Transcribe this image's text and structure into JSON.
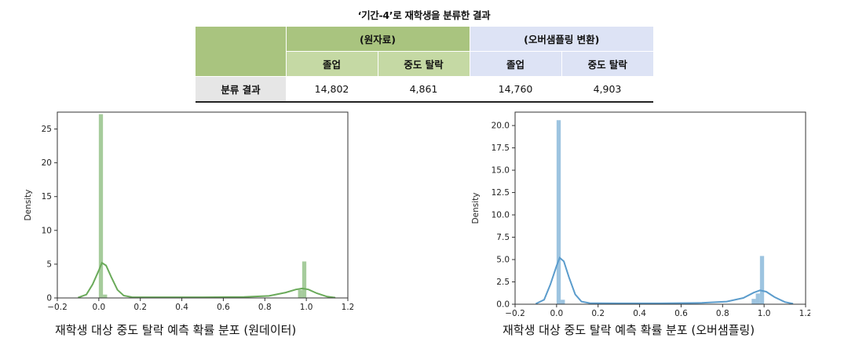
{
  "table": {
    "title": "‘기간-4’로 재학생을 분류한 결과",
    "groups": [
      "(원자료)",
      "(오버샘플링 변환)"
    ],
    "subheaders": [
      "졸업",
      "중도 탈락",
      "졸업",
      "중도 탈락"
    ],
    "row_label": "분류 결과",
    "values": [
      "14,802",
      "4,861",
      "14,760",
      "4,903"
    ],
    "colors": {
      "green_head": "#a9c47f",
      "green_sub": "#c5d9a4",
      "blue": "#dde3f5",
      "label": "#e6e6e6"
    }
  },
  "chart_data": [
    {
      "type": "bar",
      "subtype": "histogram-with-kde",
      "caption": "재학생 대상 중도 탈락 예측 확률 분포 (원데이터)",
      "ylabel": "Density",
      "xlim": [
        -0.2,
        1.2
      ],
      "ylim": [
        0,
        27.5
      ],
      "x_ticks": [
        -0.2,
        0.0,
        0.2,
        0.4,
        0.6,
        0.8,
        1.0,
        1.2
      ],
      "x_tick_labels": [
        "−0.2",
        "0.0",
        "0.2",
        "0.4",
        "0.6",
        "0.8",
        "1.0",
        "1.2"
      ],
      "y_ticks": [
        0,
        5,
        10,
        15,
        20,
        25
      ],
      "y_tick_labels": [
        "0",
        "5",
        "10",
        "15",
        "20",
        "25"
      ],
      "color": "#6aaa5a",
      "bars": [
        {
          "x0": 0.0,
          "x1": 0.02,
          "density": 27.2
        },
        {
          "x0": 0.02,
          "x1": 0.04,
          "density": 0.5
        },
        {
          "x0": 0.96,
          "x1": 0.98,
          "density": 1.2
        },
        {
          "x0": 0.98,
          "x1": 1.0,
          "density": 5.4
        }
      ],
      "kde": [
        [
          -0.1,
          0.05
        ],
        [
          -0.06,
          0.5
        ],
        [
          -0.03,
          2.0
        ],
        [
          0.0,
          4.1
        ],
        [
          0.015,
          5.2
        ],
        [
          0.035,
          4.8
        ],
        [
          0.06,
          3.1
        ],
        [
          0.09,
          1.2
        ],
        [
          0.12,
          0.35
        ],
        [
          0.16,
          0.12
        ],
        [
          0.3,
          0.1
        ],
        [
          0.5,
          0.1
        ],
        [
          0.7,
          0.15
        ],
        [
          0.82,
          0.3
        ],
        [
          0.9,
          0.8
        ],
        [
          0.95,
          1.25
        ],
        [
          0.98,
          1.4
        ],
        [
          1.01,
          1.25
        ],
        [
          1.05,
          0.7
        ],
        [
          1.1,
          0.2
        ],
        [
          1.14,
          0.05
        ]
      ]
    },
    {
      "type": "bar",
      "subtype": "histogram-with-kde",
      "caption": "재학생 대상 중도 탈락 예측 확률 분포 (오버샘플링)",
      "ylabel": "Density",
      "xlim": [
        -0.2,
        1.2
      ],
      "ylim": [
        0,
        21.5
      ],
      "x_ticks": [
        -0.2,
        0.0,
        0.2,
        0.4,
        0.6,
        0.8,
        1.0,
        1.2
      ],
      "x_tick_labels": [
        "−0.2",
        "0.0",
        "0.2",
        "0.4",
        "0.6",
        "0.8",
        "1.0",
        "1.2"
      ],
      "y_ticks": [
        0,
        2.5,
        5,
        7.5,
        10,
        12.5,
        15,
        17.5,
        20
      ],
      "y_tick_labels": [
        "0.0",
        "2.5",
        "5.0",
        "7.5",
        "10.0",
        "12.5",
        "15.0",
        "17.5",
        "20.0"
      ],
      "color": "#5b9ccc",
      "bars": [
        {
          "x0": 0.0,
          "x1": 0.02,
          "density": 20.6
        },
        {
          "x0": 0.02,
          "x1": 0.04,
          "density": 0.5
        },
        {
          "x0": 0.94,
          "x1": 0.96,
          "density": 0.6
        },
        {
          "x0": 0.96,
          "x1": 0.98,
          "density": 1.2
        },
        {
          "x0": 0.98,
          "x1": 1.0,
          "density": 5.4
        }
      ],
      "kde": [
        [
          -0.1,
          0.05
        ],
        [
          -0.06,
          0.5
        ],
        [
          -0.03,
          2.2
        ],
        [
          0.0,
          4.3
        ],
        [
          0.015,
          5.2
        ],
        [
          0.035,
          4.8
        ],
        [
          0.06,
          3.0
        ],
        [
          0.09,
          1.1
        ],
        [
          0.12,
          0.3
        ],
        [
          0.16,
          0.12
        ],
        [
          0.3,
          0.1
        ],
        [
          0.5,
          0.1
        ],
        [
          0.7,
          0.15
        ],
        [
          0.82,
          0.3
        ],
        [
          0.9,
          0.7
        ],
        [
          0.95,
          1.3
        ],
        [
          0.98,
          1.55
        ],
        [
          1.01,
          1.4
        ],
        [
          1.05,
          0.8
        ],
        [
          1.1,
          0.25
        ],
        [
          1.14,
          0.05
        ]
      ]
    }
  ]
}
